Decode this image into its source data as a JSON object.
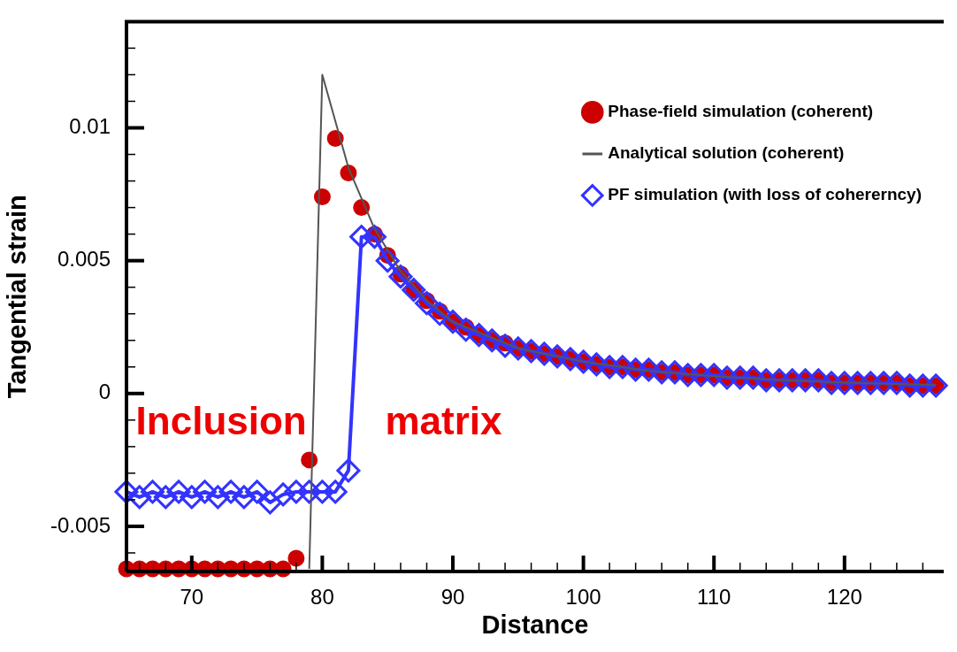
{
  "chart_data": {
    "type": "line",
    "xlabel": "Distance",
    "ylabel": "Tangential strain",
    "legend": "top right",
    "xlim": [
      65,
      127.6
    ],
    "ylim": [
      -0.0067,
      0.014
    ],
    "xticks": [
      {
        "value": 66,
        "label": null
      },
      {
        "value": 68,
        "label": null
      },
      70,
      {
        "value": 72,
        "label": null
      },
      {
        "value": 74,
        "label": null
      },
      {
        "value": 76,
        "label": null
      },
      {
        "value": 78,
        "label": null
      },
      80,
      {
        "value": 82,
        "label": null
      },
      {
        "value": 84,
        "label": null
      },
      {
        "value": 86,
        "label": null
      },
      {
        "value": 88,
        "label": null
      },
      90,
      {
        "value": 92,
        "label": null
      },
      {
        "value": 94,
        "label": null
      },
      {
        "value": 96,
        "label": null
      },
      {
        "value": 98,
        "label": null
      },
      100,
      {
        "value": 102,
        "label": null
      },
      {
        "value": 104,
        "label": null
      },
      {
        "value": 106,
        "label": null
      },
      {
        "value": 108,
        "label": null
      },
      110,
      {
        "value": 112,
        "label": null
      },
      {
        "value": 114,
        "label": null
      },
      {
        "value": 116,
        "label": null
      },
      {
        "value": 118,
        "label": null
      },
      120,
      {
        "value": 122,
        "label": null
      },
      {
        "value": 124,
        "label": null
      },
      {
        "value": 126,
        "label": null
      }
    ],
    "yticks": [
      {
        "value": -0.006,
        "label": null
      },
      -0.005,
      {
        "value": -0.004,
        "label": null
      },
      {
        "value": -0.003,
        "label": null
      },
      {
        "value": -0.002,
        "label": null
      },
      {
        "value": -0.001,
        "label": null
      },
      0,
      {
        "value": 0.001,
        "label": null
      },
      {
        "value": 0.002,
        "label": null
      },
      {
        "value": 0.003,
        "label": null
      },
      {
        "value": 0.004,
        "label": null
      },
      0.005,
      {
        "value": 0.006,
        "label": null
      },
      {
        "value": 0.007,
        "label": null
      },
      {
        "value": 0.008,
        "label": null
      },
      {
        "value": 0.009,
        "label": null
      },
      0.01,
      {
        "value": 0.011,
        "label": null
      },
      {
        "value": 0.012,
        "label": null
      },
      {
        "value": 0.013,
        "label": null
      }
    ],
    "annotations": [
      "Inclusion",
      "matrix"
    ],
    "series": [
      {
        "name": "Phase-field simulation (coherent)",
        "type": "scatter",
        "marker": "circle",
        "color": "#cc0000",
        "x": [
          65,
          66,
          67,
          68,
          69,
          70,
          71,
          72,
          73,
          74,
          75,
          76,
          77,
          78,
          79,
          80,
          81,
          82,
          83,
          84,
          85,
          86,
          87,
          88,
          89,
          90,
          91,
          92,
          93,
          94,
          95,
          96,
          97,
          98,
          99,
          100,
          101,
          102,
          103,
          104,
          105,
          106,
          107,
          108,
          109,
          110,
          111,
          112,
          113,
          114,
          115,
          116,
          117,
          118,
          119,
          120,
          121,
          122,
          123,
          124,
          125,
          126,
          127
        ],
        "values": [
          -0.0066,
          -0.0066,
          -0.0066,
          -0.0066,
          -0.0066,
          -0.0066,
          -0.0066,
          -0.0066,
          -0.0066,
          -0.0066,
          -0.0066,
          -0.0066,
          -0.0066,
          -0.0062,
          -0.0025,
          0.0074,
          0.0096,
          0.0083,
          0.007,
          0.006,
          0.0052,
          0.0045,
          0.0039,
          0.0035,
          0.0031,
          0.0027,
          0.0025,
          0.0022,
          0.002,
          0.0019,
          0.0017,
          0.0016,
          0.0015,
          0.0014,
          0.0013,
          0.0012,
          0.0011,
          0.001,
          0.001,
          0.0009,
          0.0009,
          0.0008,
          0.0008,
          0.0007,
          0.0007,
          0.0007,
          0.0006,
          0.0006,
          0.0006,
          0.0005,
          0.0005,
          0.0005,
          0.0005,
          0.0005,
          0.0004,
          0.0004,
          0.0004,
          0.0004,
          0.0004,
          0.0004,
          0.0003,
          0.0003,
          0.0003
        ]
      },
      {
        "name": "Analytical solution (coherent)",
        "type": "line",
        "marker": "none",
        "line_style": "solid",
        "color": "#555555",
        "x": [
          79,
          80,
          82,
          84,
          86,
          88,
          90,
          95,
          100,
          105,
          110,
          115,
          120,
          127
        ],
        "values": [
          -0.0066,
          0.012,
          0.0085,
          0.0062,
          0.0046,
          0.0035,
          0.0027,
          0.0017,
          0.0012,
          0.00085,
          0.00065,
          0.00051,
          0.00041,
          0.00032
        ]
      },
      {
        "name": "PF simulation (with loss of cohererncy)",
        "type": "line",
        "marker": "diamond",
        "line_style": "solid",
        "color": "#3333ff",
        "x": [
          65,
          66,
          67,
          68,
          69,
          70,
          71,
          72,
          73,
          74,
          75,
          76,
          77,
          78,
          79,
          80,
          81,
          82,
          83,
          84,
          85,
          86,
          87,
          88,
          89,
          90,
          91,
          92,
          93,
          94,
          95,
          96,
          97,
          98,
          99,
          100,
          101,
          102,
          103,
          104,
          105,
          106,
          107,
          108,
          109,
          110,
          111,
          112,
          113,
          114,
          115,
          116,
          117,
          118,
          119,
          120,
          121,
          122,
          123,
          124,
          125,
          126,
          127
        ],
        "values": [
          -0.0037,
          -0.0039,
          -0.0037,
          -0.0039,
          -0.0037,
          -0.0039,
          -0.0037,
          -0.0039,
          -0.0037,
          -0.0039,
          -0.0037,
          -0.0041,
          -0.0038,
          -0.0037,
          -0.0037,
          -0.0037,
          -0.0037,
          -0.0029,
          0.0059,
          0.0059,
          0.005,
          0.0044,
          0.0039,
          0.0034,
          0.003,
          0.0027,
          0.0024,
          0.0022,
          0.002,
          0.0018,
          0.0017,
          0.0016,
          0.0015,
          0.0014,
          0.0013,
          0.0012,
          0.0011,
          0.001,
          0.001,
          0.0009,
          0.0009,
          0.0008,
          0.0008,
          0.0007,
          0.0007,
          0.0007,
          0.0006,
          0.0006,
          0.0006,
          0.0005,
          0.0005,
          0.0005,
          0.0005,
          0.0005,
          0.0004,
          0.0004,
          0.0004,
          0.0004,
          0.0004,
          0.0004,
          0.0003,
          0.0003,
          0.0003
        ]
      }
    ]
  }
}
